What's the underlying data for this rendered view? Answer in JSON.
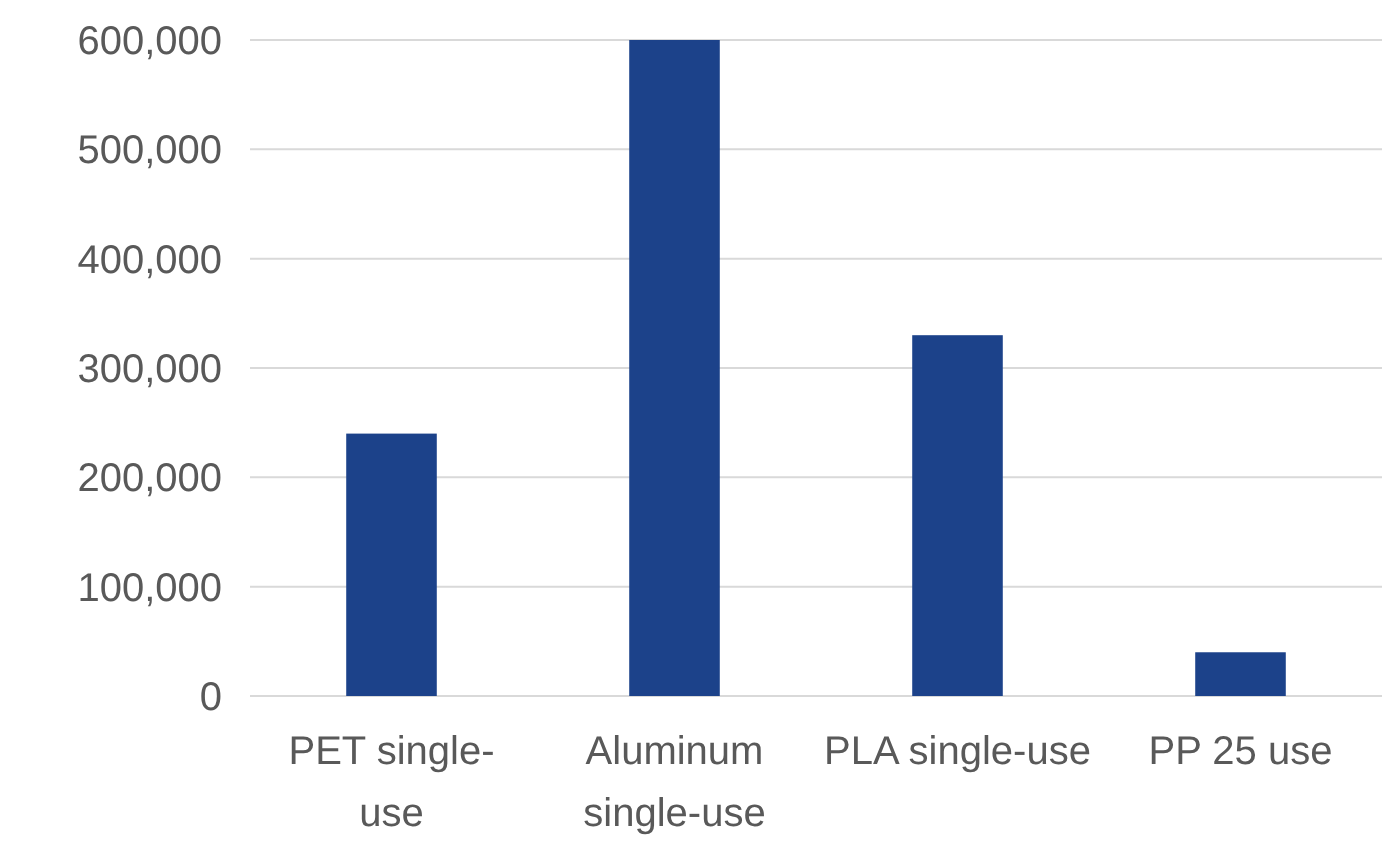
{
  "chart_data": {
    "type": "bar",
    "categories": [
      "PET single-use",
      "Aluminum single-use",
      "PLA single-use",
      "PP 25 use"
    ],
    "values": [
      240000,
      600000,
      330000,
      40000
    ],
    "color": "#1c428a",
    "ylim": [
      0,
      600000
    ],
    "yticks": [
      {
        "value": 0,
        "label": "0"
      },
      {
        "value": 100000,
        "label": "100,000"
      },
      {
        "value": 200000,
        "label": "200,000"
      },
      {
        "value": 300000,
        "label": "300,000"
      },
      {
        "value": 400000,
        "label": "400,000"
      },
      {
        "value": 500000,
        "label": "500,000"
      },
      {
        "value": 600000,
        "label": "600,000"
      }
    ],
    "grid": "y"
  }
}
